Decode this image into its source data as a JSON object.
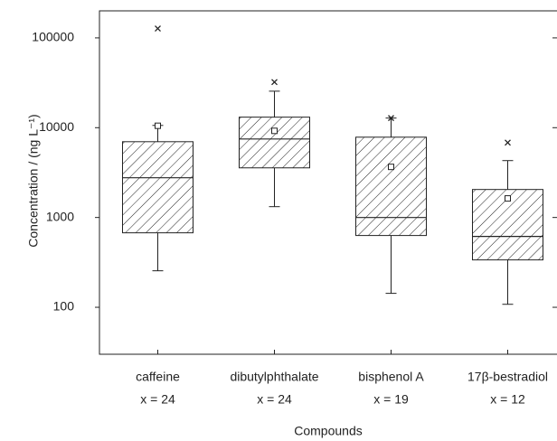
{
  "chart_data": {
    "type": "box",
    "xlabel": "Compounds",
    "ylabel": "Concentration / (ng L⁻¹)",
    "categories": [
      "caffeine",
      "dibutylphthalate",
      "bisphenol A",
      "17β-bestradiol"
    ],
    "sample_labels": [
      "x = 24",
      "x = 24",
      "x = 19",
      "x = 12"
    ],
    "whisker_low": [
      255,
      1320,
      143,
      108
    ],
    "q1": [
      675,
      3570,
      630,
      337
    ],
    "median": [
      2770,
      7480,
      1000,
      615
    ],
    "q3": [
      6980,
      13100,
      7840,
      2050
    ],
    "whisker_high": [
      10600,
      25500,
      12800,
      4300
    ],
    "mean": [
      10500,
      9220,
      3660,
      1630
    ],
    "max": [
      127000,
      32200,
      12800,
      6820
    ],
    "log_scale": true,
    "ylim": [
      30,
      200000
    ],
    "yticks": [
      100,
      1000,
      10000,
      100000
    ],
    "color": "#222222"
  }
}
